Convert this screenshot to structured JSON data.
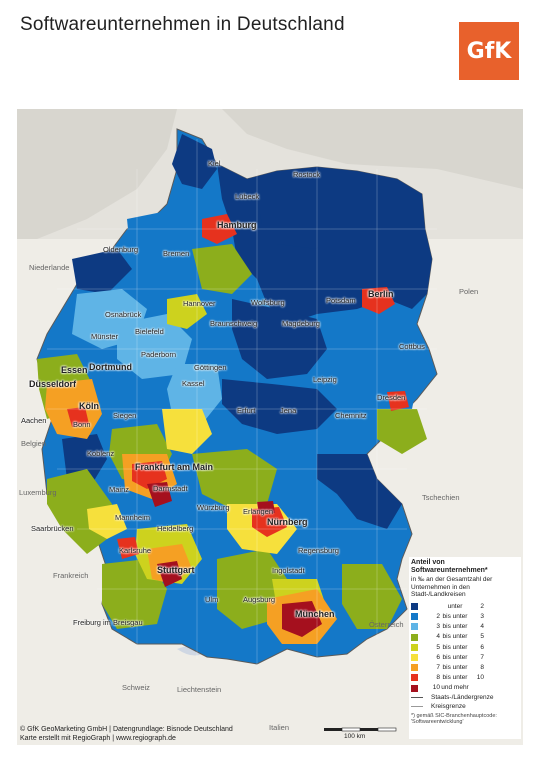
{
  "title": "Softwareunternehmen in Deutschland",
  "logo_text": "GfK",
  "countries": [
    {
      "name": "Niederlande"
    },
    {
      "name": "Polen"
    },
    {
      "name": "Belgien"
    },
    {
      "name": "Luxemburg"
    },
    {
      "name": "Frankreich"
    },
    {
      "name": "Tschechien"
    },
    {
      "name": "Österreich"
    },
    {
      "name": "Schweiz"
    },
    {
      "name": "Liechtenstein"
    },
    {
      "name": "Italien"
    }
  ],
  "cities": [
    {
      "name": "Kiel"
    },
    {
      "name": "Rostock"
    },
    {
      "name": "Lübeck"
    },
    {
      "name": "Hamburg"
    },
    {
      "name": "Oldenburg"
    },
    {
      "name": "Bremen"
    },
    {
      "name": "Berlin"
    },
    {
      "name": "Potsdam"
    },
    {
      "name": "Hannover"
    },
    {
      "name": "Wolfsburg"
    },
    {
      "name": "Osnabrück"
    },
    {
      "name": "Braunschweig"
    },
    {
      "name": "Magdeburg"
    },
    {
      "name": "Bielefeld"
    },
    {
      "name": "Münster"
    },
    {
      "name": "Paderborn"
    },
    {
      "name": "Cottbus"
    },
    {
      "name": "Göttingen"
    },
    {
      "name": "Essen"
    },
    {
      "name": "Dortmund"
    },
    {
      "name": "Kassel"
    },
    {
      "name": "Leipzig"
    },
    {
      "name": "Düsseldorf"
    },
    {
      "name": "Dresden"
    },
    {
      "name": "Köln"
    },
    {
      "name": "Siegen"
    },
    {
      "name": "Erfurt"
    },
    {
      "name": "Jena"
    },
    {
      "name": "Chemnitz"
    },
    {
      "name": "Aachen"
    },
    {
      "name": "Bonn"
    },
    {
      "name": "Koblenz"
    },
    {
      "name": "Frankfurt am Main"
    },
    {
      "name": "Mainz"
    },
    {
      "name": "Darmstadt"
    },
    {
      "name": "Würzburg"
    },
    {
      "name": "Erlangen"
    },
    {
      "name": "Mannheim"
    },
    {
      "name": "Nürnberg"
    },
    {
      "name": "Heidelberg"
    },
    {
      "name": "Saarbrücken"
    },
    {
      "name": "Regensburg"
    },
    {
      "name": "Karlsruhe"
    },
    {
      "name": "Stuttgart"
    },
    {
      "name": "Ingolstadt"
    },
    {
      "name": "Ulm"
    },
    {
      "name": "Augsburg"
    },
    {
      "name": "München"
    },
    {
      "name": "Freiburg im Breisgau"
    }
  ],
  "legend": {
    "title": "Anteil von Softwareunternehmen*",
    "subtitle": "in ‰ an der Gesamtzahl der Unternehmen in den Stadt-/Landkreisen",
    "classes": [
      {
        "from": "",
        "op": "unter",
        "to": "2",
        "color": "#0d3a82"
      },
      {
        "from": "2",
        "op": "bis unter",
        "to": "3",
        "color": "#1478c8"
      },
      {
        "from": "3",
        "op": "bis unter",
        "to": "4",
        "color": "#5fb4e6"
      },
      {
        "from": "4",
        "op": "bis unter",
        "to": "5",
        "color": "#8cae1c"
      },
      {
        "from": "5",
        "op": "bis unter",
        "to": "6",
        "color": "#cdd21e"
      },
      {
        "from": "6",
        "op": "bis unter",
        "to": "7",
        "color": "#f6e03c"
      },
      {
        "from": "7",
        "op": "bis unter",
        "to": "8",
        "color": "#f5a023"
      },
      {
        "from": "8",
        "op": "bis unter",
        "to": "10",
        "color": "#e6321e"
      },
      {
        "from": "10",
        "op": "und mehr",
        "to": "",
        "color": "#a5101e"
      }
    ],
    "boundary_state": "Staats-/Ländergrenze",
    "boundary_district": "Kreisgrenze",
    "footnote": "*) gemäß SIC-Branchenhauptcode: 'Softwareentwicklung'"
  },
  "credits": {
    "line1": "© GfK GeoMarketing GmbH | Datengrundlage: Bisnode Deutschland",
    "line2": "Karte erstellt mit RegioGraph | www.regiograph.de"
  },
  "scale_label": "100 km"
}
